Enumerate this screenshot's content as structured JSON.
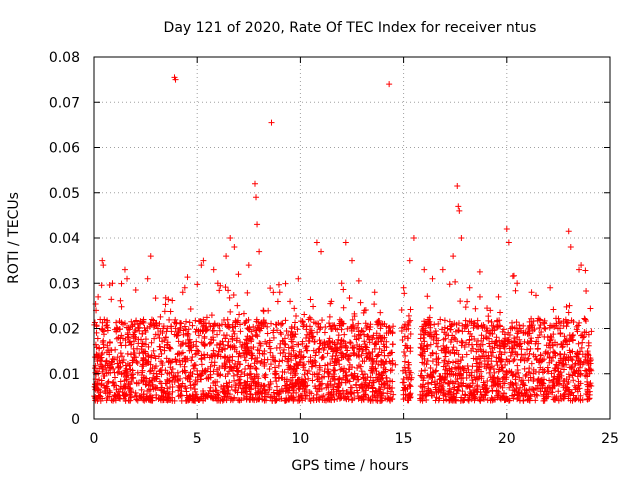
{
  "chart_data": {
    "type": "scatter",
    "title": "Day 121 of 2020, Rate Of TEC Index for receiver ntus",
    "xlabel": "GPS time / hours",
    "ylabel": "ROTI / TECUs",
    "xlim": [
      0,
      25
    ],
    "ylim": [
      0,
      0.08
    ],
    "xticks": [
      0,
      5,
      10,
      15,
      20,
      25
    ],
    "xtick_labels": [
      "0",
      "5",
      "10",
      "15",
      "20",
      "25"
    ],
    "yticks": [
      0,
      0.01,
      0.02,
      0.03,
      0.04,
      0.05,
      0.06,
      0.07,
      0.08
    ],
    "ytick_labels": [
      "0",
      "0.01",
      "0.02",
      "0.03",
      "0.04",
      "0.05",
      "0.06",
      "0.07",
      "0.08"
    ],
    "grid": true,
    "marker": "plus",
    "color": "#ff0000",
    "series": [
      {
        "name": "ROTI",
        "points": [
          [
            0.1,
            0.024
          ],
          [
            0.2,
            0.027
          ],
          [
            0.3,
            0.022
          ],
          [
            0.4,
            0.035
          ],
          [
            0.45,
            0.034
          ],
          [
            1.1,
            0.02
          ],
          [
            1.5,
            0.033
          ],
          [
            1.6,
            0.031
          ],
          [
            2.4,
            0.022
          ],
          [
            2.6,
            0.031
          ],
          [
            2.75,
            0.036
          ],
          [
            3.1,
            0.02
          ],
          [
            3.9,
            0.0755
          ],
          [
            3.95,
            0.075
          ],
          [
            4.3,
            0.028
          ],
          [
            4.4,
            0.029
          ],
          [
            5.2,
            0.034
          ],
          [
            5.3,
            0.035
          ],
          [
            5.8,
            0.033
          ],
          [
            6.0,
            0.03
          ],
          [
            6.4,
            0.036
          ],
          [
            6.6,
            0.04
          ],
          [
            6.8,
            0.038
          ],
          [
            7.0,
            0.032
          ],
          [
            7.5,
            0.034
          ],
          [
            7.8,
            0.052
          ],
          [
            7.85,
            0.049
          ],
          [
            7.9,
            0.043
          ],
          [
            8.0,
            0.037
          ],
          [
            8.2,
            0.024
          ],
          [
            8.6,
            0.0655
          ],
          [
            9.0,
            0.028
          ],
          [
            9.5,
            0.026
          ],
          [
            9.9,
            0.031
          ],
          [
            10.4,
            0.022
          ],
          [
            10.8,
            0.039
          ],
          [
            11.0,
            0.037
          ],
          [
            11.5,
            0.026
          ],
          [
            12.0,
            0.03
          ],
          [
            12.2,
            0.039
          ],
          [
            12.5,
            0.035
          ],
          [
            13.1,
            0.024
          ],
          [
            13.6,
            0.028
          ],
          [
            14.3,
            0.074
          ],
          [
            14.6,
            0.012
          ],
          [
            15.0,
            0.029
          ],
          [
            15.3,
            0.035
          ],
          [
            15.5,
            0.04
          ],
          [
            16.0,
            0.033
          ],
          [
            16.4,
            0.031
          ],
          [
            16.9,
            0.033
          ],
          [
            17.4,
            0.036
          ],
          [
            17.6,
            0.0515
          ],
          [
            17.65,
            0.047
          ],
          [
            17.7,
            0.046
          ],
          [
            17.8,
            0.04
          ],
          [
            18.2,
            0.029
          ],
          [
            18.7,
            0.027
          ],
          [
            19.2,
            0.024
          ],
          [
            19.6,
            0.027
          ],
          [
            20.0,
            0.042
          ],
          [
            20.1,
            0.039
          ],
          [
            20.5,
            0.03
          ],
          [
            21.2,
            0.028
          ],
          [
            21.6,
            0.022
          ],
          [
            22.1,
            0.029
          ],
          [
            22.6,
            0.019
          ],
          [
            23.0,
            0.0415
          ],
          [
            23.1,
            0.038
          ],
          [
            23.5,
            0.033
          ],
          [
            23.6,
            0.034
          ],
          [
            23.8,
            0.022
          ],
          [
            24.0,
            0.011
          ]
        ],
        "dense_band": {
          "description_ranges_hours": [
            [
              0,
              14.5
            ],
            [
              14.9,
              15.4
            ],
            [
              15.8,
              24.1
            ]
          ],
          "typical_min": 0.004,
          "typical_max": 0.022
        }
      }
    ]
  }
}
